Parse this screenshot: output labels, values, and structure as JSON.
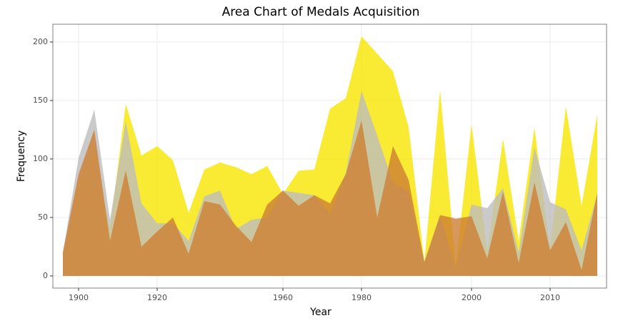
{
  "chart_data": {
    "type": "area",
    "title": "Area Chart of Medals Acquisition",
    "x_label": "Year",
    "y_label": "Frequency",
    "categories": [
      1896,
      1900,
      1904,
      1906,
      1908,
      1912,
      1920,
      1924,
      1928,
      1932,
      1936,
      1948,
      1952,
      1956,
      1960,
      1964,
      1968,
      1972,
      1976,
      1980,
      1984,
      1988,
      1992,
      1994,
      1996,
      1998,
      2000,
      2002,
      2004,
      2006,
      2008,
      2010,
      2012,
      2014,
      2016
    ],
    "xticks": [
      1900,
      1920,
      1960,
      1980,
      2000,
      2010
    ],
    "ylim": [
      -10.4,
      215.2
    ],
    "yticks": [
      0,
      50,
      100,
      150,
      200
    ],
    "grid": true,
    "series": [
      {
        "color": "#f7e600",
        "values": [
          20,
          80,
          110,
          40,
          147,
          103,
          111,
          99,
          54,
          91,
          97,
          93,
          87,
          94,
          70,
          90,
          91,
          143,
          152,
          205,
          190,
          175,
          127,
          12,
          159,
          8,
          130,
          20,
          117,
          30,
          127,
          23,
          145,
          60,
          138
        ]
      },
      {
        "color": "#bdbdbd",
        "values": [
          20,
          101,
          142,
          48,
          132,
          62,
          45,
          45,
          30,
          68,
          73,
          40,
          48,
          50,
          73,
          71,
          69,
          53,
          88,
          158,
          120,
          80,
          72,
          12,
          52,
          7,
          61,
          58,
          75,
          20,
          110,
          63,
          57,
          22,
          70
        ]
      },
      {
        "color": "#cd7f32",
        "values": [
          20,
          87,
          125,
          30,
          90,
          25,
          38,
          50,
          19,
          64,
          61,
          43,
          29,
          61,
          73,
          60,
          69,
          62,
          87,
          133,
          50,
          111,
          82,
          12,
          52,
          49,
          51,
          15,
          72,
          11,
          80,
          22,
          46,
          5,
          71
        ]
      }
    ]
  }
}
